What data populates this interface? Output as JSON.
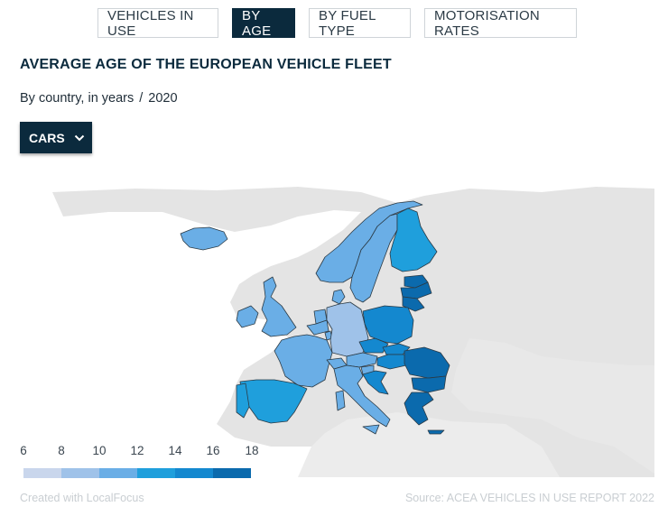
{
  "tabs": [
    {
      "label": "VEHICLES IN USE",
      "active": false
    },
    {
      "label": "BY AGE",
      "active": true
    },
    {
      "label": "BY FUEL TYPE",
      "active": false
    },
    {
      "label": "MOTORISATION RATES",
      "active": false
    }
  ],
  "title": "AVERAGE AGE OF THE EUROPEAN VEHICLE FLEET",
  "subtitle": {
    "text": "By country, in years",
    "separator": "/",
    "year": "2020"
  },
  "vehicle_select": {
    "value": "CARS",
    "icon": "chevron-down-icon"
  },
  "legend": {
    "ticks": [
      "6",
      "8",
      "10",
      "12",
      "14",
      "16",
      "18"
    ],
    "colors": [
      "#c9d6ec",
      "#9fc2e9",
      "#6aaee6",
      "#1f9fdc",
      "#1488cf",
      "#0b6aad"
    ]
  },
  "map_colors": {
    "background_land": "#e4e4e4",
    "country_border": "#2b3a45"
  },
  "footer": {
    "credit": "Created with LocalFocus",
    "source": "Source: ACEA VEHICLES IN USE REPORT 2022"
  }
}
